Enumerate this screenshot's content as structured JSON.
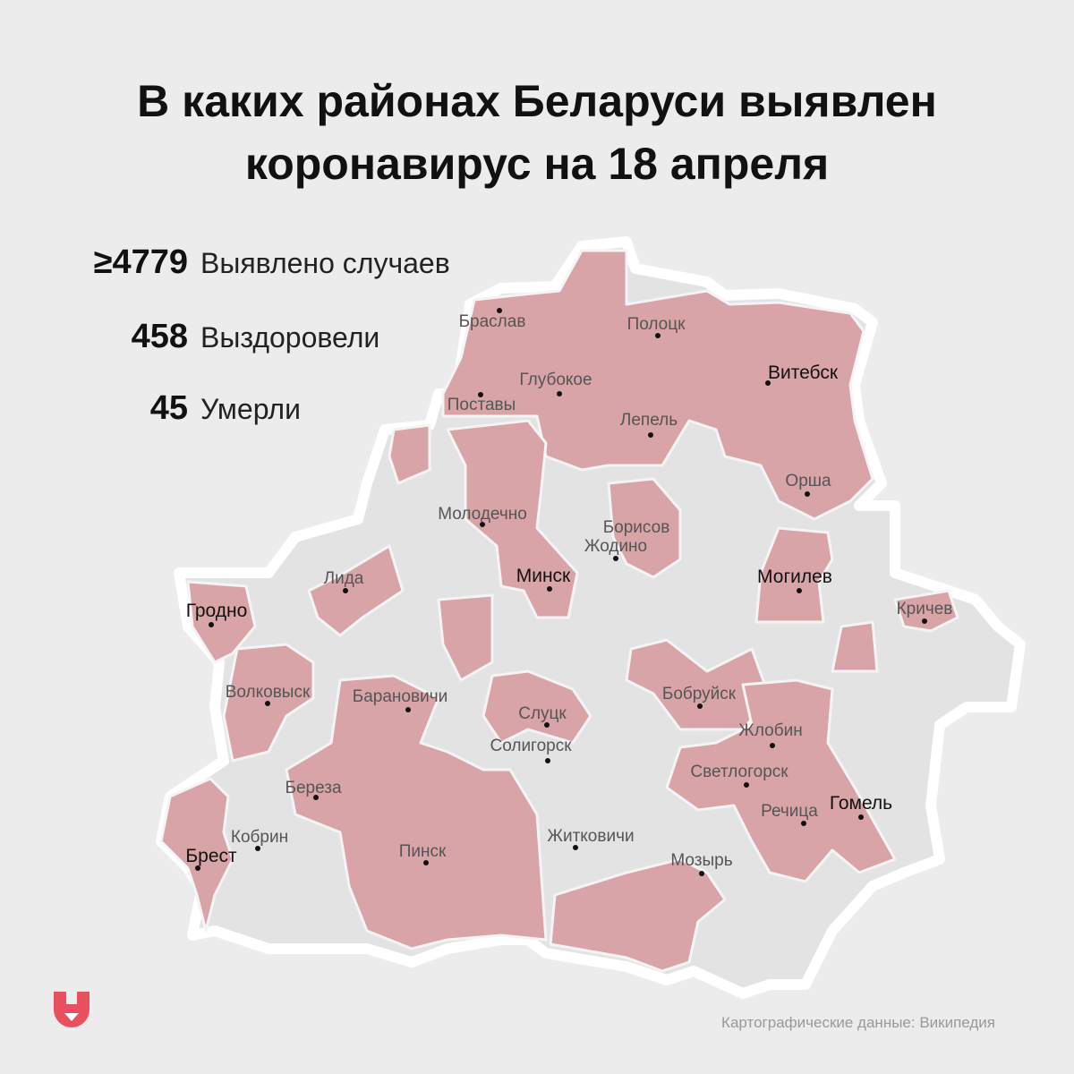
{
  "header": {
    "title_line1": "В каких районах Беларуси выявлен",
    "title_line2": "коронавирус на 18 апреля"
  },
  "stats": [
    {
      "value": "≥4779",
      "label": "Выявлено случаев"
    },
    {
      "value": "458",
      "label": "Выздоровели"
    },
    {
      "value": "45",
      "label": "Умерли"
    }
  ],
  "cities": [
    "Браслав",
    "Полоцк",
    "Глубокое",
    "Поставы",
    "Лепель",
    "Витебск",
    "Орша",
    "Молодечно",
    "Борисов",
    "Жодино",
    "Минск",
    "Могилев",
    "Кричев",
    "Лида",
    "Гродно",
    "Волковыск",
    "Барановичи",
    "Бобруйск",
    "Слуцк",
    "Солигорск",
    "Жлобин",
    "Светлогорск",
    "Береза",
    "Речица",
    "Гомель",
    "Кобрин",
    "Житковичи",
    "Брест",
    "Пинск",
    "Мозырь"
  ],
  "source": "Картографические данные: Википедия"
}
